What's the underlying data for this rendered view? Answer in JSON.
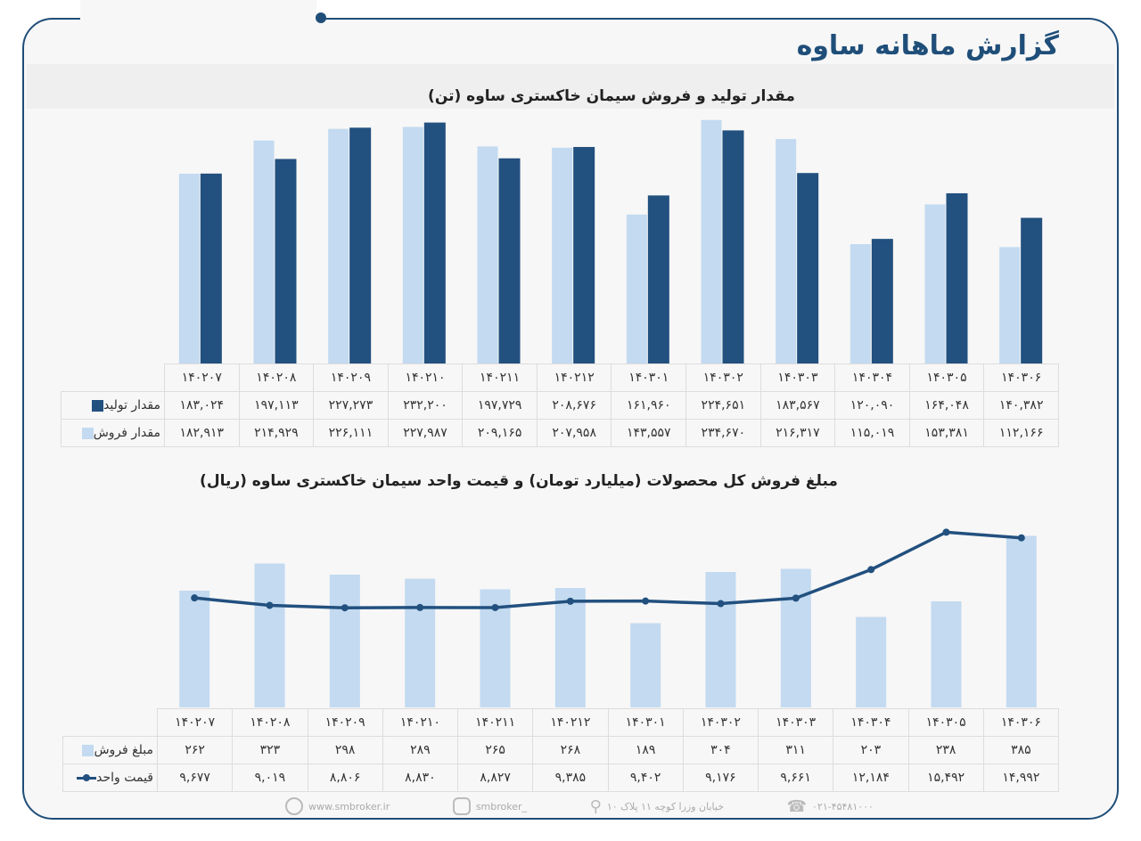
{
  "header": {
    "title": "گزارش ماهانه ساوه"
  },
  "colors": {
    "frame": "#1f4e79",
    "dark_bar": "#22507f",
    "light_bar": "#c3daf0",
    "line": "#22507f"
  },
  "chart_data": [
    {
      "type": "bar",
      "title": "مقدار تولید و فروش سیمان خاکستری ساوه (تن)",
      "categories": [
        "۱۴۰۲۰۷",
        "۱۴۰۲۰۸",
        "۱۴۰۲۰۹",
        "۱۴۰۲۱۰",
        "۱۴۰۲۱۱",
        "۱۴۰۲۱۲",
        "۱۴۰۳۰۱",
        "۱۴۰۳۰۲",
        "۱۴۰۳۰۳",
        "۱۴۰۳۰۴",
        "۱۴۰۳۰۵",
        "۱۴۰۳۰۶"
      ],
      "series": [
        {
          "name": "مقدار تولید",
          "color": "#22507f",
          "values": [
            183024,
            197113,
            227273,
            232200,
            197729,
            208676,
            161960,
            224651,
            183567,
            120090,
            164048,
            140382
          ],
          "labels": [
            "۱۸۳,۰۲۴",
            "۱۹۷,۱۱۳",
            "۲۲۷,۲۷۳",
            "۲۳۲,۲۰۰",
            "۱۹۷,۷۲۹",
            "۲۰۸,۶۷۶",
            "۱۶۱,۹۶۰",
            "۲۲۴,۶۵۱",
            "۱۸۳,۵۶۷",
            "۱۲۰,۰۹۰",
            "۱۶۴,۰۴۸",
            "۱۴۰,۳۸۲"
          ]
        },
        {
          "name": "مقدار فروش",
          "color": "#c3daf0",
          "values": [
            182913,
            214929,
            226111,
            227987,
            209165,
            207958,
            143557,
            234670,
            216317,
            115019,
            153381,
            112166
          ],
          "labels": [
            "۱۸۲,۹۱۳",
            "۲۱۴,۹۲۹",
            "۲۲۶,۱۱۱",
            "۲۲۷,۹۸۷",
            "۲۰۹,۱۶۵",
            "۲۰۷,۹۵۸",
            "۱۴۳,۵۵۷",
            "۲۳۴,۶۷۰",
            "۲۱۶,۳۱۷",
            "۱۱۵,۰۱۹",
            "۱۵۳,۳۸۱",
            "۱۱۲,۱۶۶"
          ]
        }
      ],
      "ylim": [
        0,
        243000
      ],
      "grid": false,
      "legend": "table"
    },
    {
      "type": "bar+line",
      "title": "مبلغ فروش کل محصولات (میلیارد تومان) و قیمت واحد سیمان خاکستری ساوه (ریال)",
      "categories": [
        "۱۴۰۲۰۷",
        "۱۴۰۲۰۸",
        "۱۴۰۲۰۹",
        "۱۴۰۲۱۰",
        "۱۴۰۲۱۱",
        "۱۴۰۲۱۲",
        "۱۴۰۳۰۱",
        "۱۴۰۳۰۲",
        "۱۴۰۳۰۳",
        "۱۴۰۳۰۴",
        "۱۴۰۳۰۵",
        "۱۴۰۳۰۶"
      ],
      "series": [
        {
          "name": "مبلغ فروش",
          "type": "bar",
          "color": "#c3daf0",
          "values": [
            262,
            323,
            298,
            289,
            265,
            268,
            189,
            304,
            311,
            203,
            238,
            385
          ],
          "labels": [
            "۲۶۲",
            "۳۲۳",
            "۲۹۸",
            "۲۸۹",
            "۲۶۵",
            "۲۶۸",
            "۱۸۹",
            "۳۰۴",
            "۳۱۱",
            "۲۰۳",
            "۲۳۸",
            "۳۸۵"
          ],
          "ylim": [
            0,
            386
          ]
        },
        {
          "name": "قیمت واحد",
          "type": "line",
          "color": "#22507f",
          "values": [
            9677,
            9019,
            8806,
            8830,
            8827,
            9385,
            9402,
            9176,
            9661,
            12184,
            15492,
            14992
          ],
          "labels": [
            "۹,۶۷۷",
            "۹,۰۱۹",
            "۸,۸۰۶",
            "۸,۸۳۰",
            "۸,۸۲۷",
            "۹,۳۸۵",
            "۹,۴۰۲",
            "۹,۱۷۶",
            "۹,۶۶۱",
            "۱۲,۱۸۴",
            "۱۵,۴۹۲",
            "۱۴,۹۹۲"
          ],
          "ylim": [
            0,
            15600
          ]
        }
      ],
      "grid": false,
      "legend": "table"
    }
  ],
  "footer": {
    "website": "www.smbroker.ir",
    "instagram": "smbroker_",
    "address": "خیابان وزرا کوچه ۱۱ پلاک ۱۰",
    "phone": "۰۲۱-۴۵۴۸۱۰۰۰"
  }
}
